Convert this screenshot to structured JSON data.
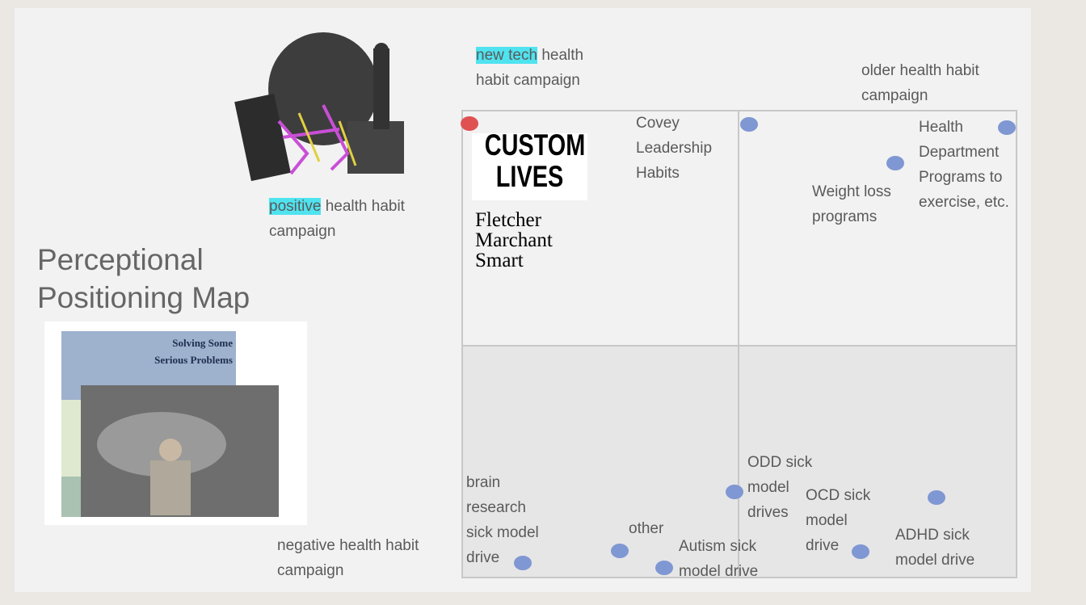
{
  "title": [
    "Perceptional",
    "Positioning Map"
  ],
  "axis_labels": {
    "top": {
      "highlight": "new tech",
      "lines": [
        "health",
        "habit campaign"
      ]
    },
    "top_right": {
      "lines": [
        "older health habit",
        "campaign"
      ]
    },
    "left_top": {
      "highlight": "positive",
      "lines": [
        "health habit",
        "campaign"
      ]
    },
    "left_bottom": {
      "lines": [
        "negative health habit",
        "campaign"
      ]
    }
  },
  "brand": {
    "logo": [
      "CUSTOM",
      "LIVES"
    ],
    "names": [
      "Fletcher",
      "Marchant",
      "Smart"
    ]
  },
  "book": {
    "title": [
      "Solving Some",
      "Serious Problems"
    ]
  },
  "competitors": [
    {
      "lines": [
        "Covey",
        "Leadership",
        "Habits"
      ]
    },
    {
      "lines": [
        "Health",
        "Department",
        "Programs to",
        "exercise, etc."
      ]
    },
    {
      "lines": [
        "Weight loss",
        "programs"
      ]
    },
    {
      "lines": [
        "brain",
        "research",
        "sick model",
        "drive"
      ]
    },
    {
      "lines": [
        "other"
      ]
    },
    {
      "lines": [
        "Autism sick",
        "model drive"
      ]
    },
    {
      "lines": [
        "ODD sick",
        "model",
        "drives"
      ]
    },
    {
      "lines": [
        "OCD sick",
        "model",
        "drive"
      ]
    },
    {
      "lines": [
        "ADHD sick",
        "model drive"
      ]
    }
  ]
}
